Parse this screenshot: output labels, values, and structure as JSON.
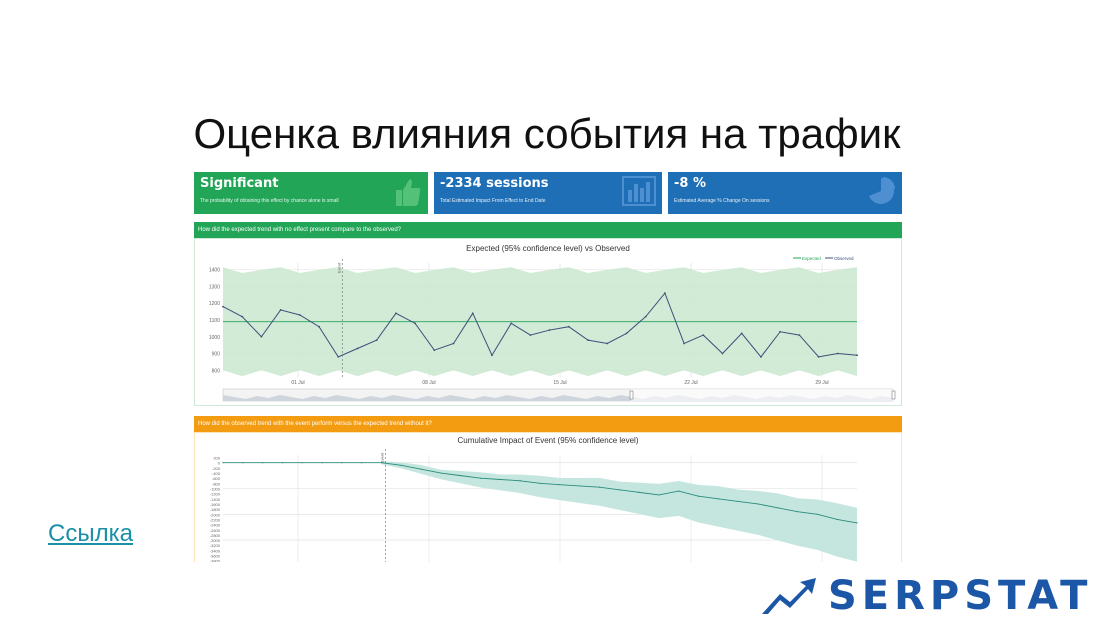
{
  "slide": {
    "title": "Оценка влияния события на трафик",
    "link_label": "Ссылка",
    "logo_text": "SERPSTAT"
  },
  "cards": [
    {
      "value": "Significant",
      "caption": "The probability of obtaining this effect by chance alone is small",
      "color": "#22a556",
      "icon": "thumbs-up-icon"
    },
    {
      "value": "-2334 sessions",
      "caption": "Total Estimated Impact From Effect to End Date",
      "color": "#1f6fb6",
      "icon": "bar-chart-icon"
    },
    {
      "value": "-8 %",
      "caption": "Estimated Average % Change On sessions",
      "color": "#1f6fb6",
      "icon": "pie-chart-icon"
    }
  ],
  "panels": {
    "first_question": "How did the expected trend with no effect present compare to the observed?",
    "second_question": "How did the observed trend with the event perform versus the expected trend without it?",
    "first_color": "#22a556",
    "second_color": "#f39c12"
  },
  "chart_data": [
    {
      "type": "line",
      "title": "Expected (95% confidence level) vs Observed",
      "legend": [
        "Expected",
        "Observed"
      ],
      "legend_position": "top-right",
      "event_label": "Event",
      "x_ticks": [
        "01 Jul",
        "08 Jul",
        "15 Jul",
        "22 Jul",
        "29 Jul"
      ],
      "y_ticks": [
        800,
        900,
        1000,
        1100,
        1200,
        1300,
        1400
      ],
      "ylim": [
        760,
        1440
      ],
      "series": [
        {
          "name": "Observed",
          "color": "#3d4f7a",
          "values": [
            1180,
            1120,
            1000,
            1160,
            1130,
            1060,
            880,
            930,
            980,
            1140,
            1080,
            920,
            960,
            1140,
            890,
            1080,
            1010,
            1040,
            1060,
            980,
            960,
            1020,
            1120,
            1260,
            960,
            1010,
            900,
            1020,
            880,
            1030,
            1010,
            880,
            900,
            890
          ]
        },
        {
          "name": "Expected",
          "color": "#22a556",
          "values": [
            1090,
            1090,
            1090,
            1090,
            1090,
            1090,
            1090,
            1090,
            1090,
            1090,
            1090,
            1090,
            1090,
            1090,
            1090,
            1090,
            1090,
            1090,
            1090,
            1090,
            1090,
            1090,
            1090,
            1090,
            1090,
            1090,
            1090,
            1090,
            1090,
            1090,
            1090,
            1090,
            1090,
            1090
          ]
        }
      ]
    },
    {
      "type": "area",
      "title": "Cumulative Impact of Event (95% confidence level)",
      "event_label": "Event",
      "y_ticks": [
        200,
        0,
        -200,
        -400,
        -600,
        -800,
        -1000,
        -1200,
        -1400,
        -1600,
        -1800,
        -2000,
        -2200,
        -2400,
        -2600,
        -2800,
        -3000,
        -3200,
        -3400,
        -3600,
        -3800,
        -4000
      ],
      "ylim": [
        -4200,
        300
      ],
      "series": [
        {
          "name": "Cumulative",
          "color": "#2a8c7c",
          "values": [
            0,
            0,
            0,
            0,
            0,
            0,
            0,
            0,
            0,
            -100,
            -250,
            -400,
            -500,
            -600,
            -650,
            -700,
            -800,
            -850,
            -900,
            -950,
            -1050,
            -1150,
            -1250,
            -1100,
            -1300,
            -1400,
            -1500,
            -1600,
            -1750,
            -1900,
            -2000,
            -2200,
            -2334
          ]
        }
      ]
    }
  ]
}
